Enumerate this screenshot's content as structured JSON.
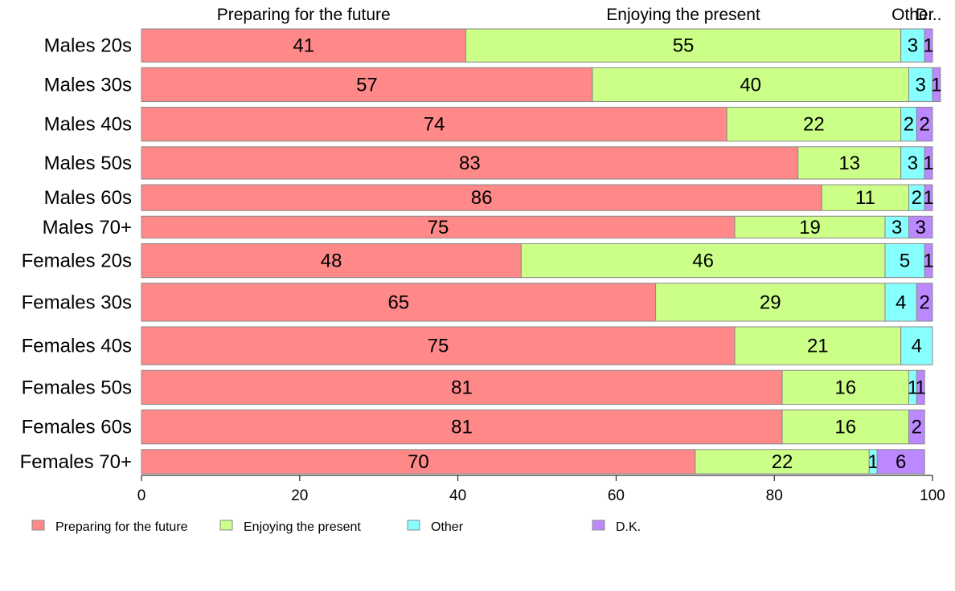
{
  "chart_data": {
    "type": "bar",
    "orientation": "horizontal",
    "stacked": true,
    "categories": [
      "Males 20s",
      "Males 30s",
      "Males 40s",
      "Males 50s",
      "Males 60s",
      "Males 70+",
      "Females 20s",
      "Females 30s",
      "Females 40s",
      "Females 50s",
      "Females 60s",
      "Females 70+"
    ],
    "relative_widths": [
      41,
      42,
      42,
      40,
      32,
      27,
      42,
      47,
      47,
      42,
      42,
      30
    ],
    "series": [
      {
        "name": "Preparing for the future",
        "color": "#ff8888",
        "values": [
          41,
          57,
          74,
          83,
          86,
          75,
          48,
          65,
          75,
          81,
          81,
          70
        ]
      },
      {
        "name": "Enjoying the present",
        "color": "#ccff88",
        "values": [
          55,
          40,
          22,
          13,
          11,
          19,
          46,
          29,
          21,
          16,
          16,
          22
        ]
      },
      {
        "name": "Other",
        "color": "#88ffff",
        "values": [
          3,
          3,
          2,
          3,
          2,
          3,
          5,
          4,
          4,
          1,
          0,
          1
        ]
      },
      {
        "name": "D.K.",
        "color": "#bb88ff",
        "values": [
          1,
          1,
          2,
          1,
          1,
          3,
          1,
          2,
          0,
          1,
          2,
          6
        ]
      }
    ],
    "segment_labels": [
      [
        "41",
        "55",
        "3",
        "1"
      ],
      [
        "57",
        "40",
        "3",
        "1"
      ],
      [
        "74",
        "22",
        "2",
        "2"
      ],
      [
        "83",
        "13",
        "3",
        "1"
      ],
      [
        "86",
        "11",
        "2",
        "1"
      ],
      [
        "75",
        "19",
        "3",
        "3"
      ],
      [
        "48",
        "46",
        "5",
        "1"
      ],
      [
        "65",
        "29",
        "4",
        "2"
      ],
      [
        "75",
        "21",
        "4",
        ""
      ],
      [
        "81",
        "16",
        "1",
        "1"
      ],
      [
        "81",
        "16",
        "",
        "2"
      ],
      [
        "70",
        "22",
        "1",
        "6"
      ]
    ],
    "top_labels": [
      "Preparing for the future",
      "Enjoying the present",
      "Other",
      "D..."
    ],
    "xlim": [
      0,
      100
    ],
    "xticks": [
      0,
      20,
      40,
      60,
      80,
      100
    ],
    "legend": {
      "position": "bottom",
      "entries": [
        "Preparing for the future",
        "Enjoying the present",
        "Other",
        "D.K."
      ]
    },
    "grid": false,
    "title": "",
    "xlabel": "",
    "ylabel": ""
  }
}
